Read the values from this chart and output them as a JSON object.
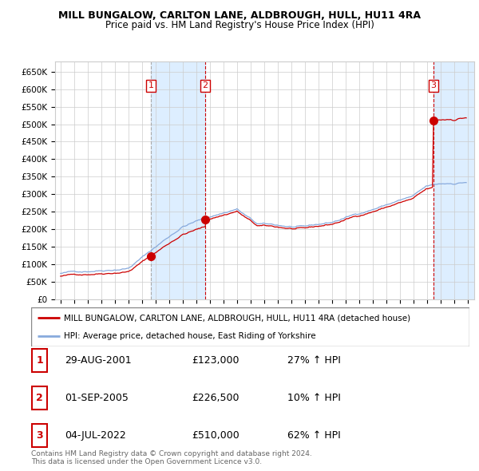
{
  "title": "MILL BUNGALOW, CARLTON LANE, ALDBROUGH, HULL, HU11 4RA",
  "subtitle": "Price paid vs. HM Land Registry's House Price Index (HPI)",
  "ylim": [
    0,
    680000
  ],
  "yticks": [
    0,
    50000,
    100000,
    150000,
    200000,
    250000,
    300000,
    350000,
    400000,
    450000,
    500000,
    550000,
    600000,
    650000
  ],
  "ytick_labels": [
    "£0",
    "£50K",
    "£100K",
    "£150K",
    "£200K",
    "£250K",
    "£300K",
    "£350K",
    "£400K",
    "£450K",
    "£500K",
    "£550K",
    "£600K",
    "£650K"
  ],
  "background_color": "#ffffff",
  "grid_color": "#cccccc",
  "sale_color": "#cc0000",
  "hpi_color": "#88aadd",
  "sale_line_color": "#cc0000",
  "hpi_line_color": "#88aadd",
  "shade_color": "#ddeeff",
  "sale_year_1": 2001.667,
  "sale_year_2": 2005.667,
  "sale_year_3": 2022.5,
  "sale_value_1": 123000,
  "sale_value_2": 226500,
  "sale_value_3": 510000,
  "legend_entries": [
    "MILL BUNGALOW, CARLTON LANE, ALDBROUGH, HULL, HU11 4RA (detached house)",
    "HPI: Average price, detached house, East Riding of Yorkshire"
  ],
  "table_rows": [
    [
      "1",
      "29-AUG-2001",
      "£123,000",
      "27% ↑ HPI"
    ],
    [
      "2",
      "01-SEP-2005",
      "£226,500",
      "10% ↑ HPI"
    ],
    [
      "3",
      "04-JUL-2022",
      "£510,000",
      "62% ↑ HPI"
    ]
  ],
  "footnote": "Contains HM Land Registry data © Crown copyright and database right 2024.\nThis data is licensed under the Open Government Licence v3.0.",
  "title_fontsize": 9,
  "subtitle_fontsize": 8.5,
  "tick_fontsize": 7.5,
  "legend_fontsize": 8,
  "table_fontsize": 9
}
